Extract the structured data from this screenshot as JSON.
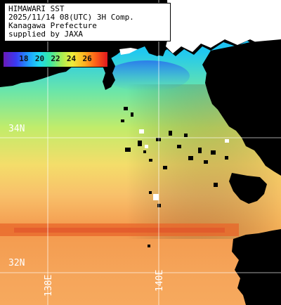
{
  "title_box": {
    "line1": "HIMAWARI SST",
    "line2": "2025/11/14 08(UTC) 3H Comp.",
    "line3": "Kanagawa Prefecture",
    "line4": "supplied by JAXA"
  },
  "colorbar": {
    "ticks": [
      "18",
      "20",
      "22",
      "24",
      "26"
    ],
    "min_value": 16.5,
    "max_value": 27.5,
    "unit": ""
  },
  "grid": {
    "latitudes": [
      "34N",
      "32N"
    ],
    "longitudes": [
      "138E",
      "140E"
    ]
  },
  "colors": {
    "land": "#000000",
    "cloud_mask": "#ffffff",
    "grid_line": "#ffffff",
    "water_cold": "#1e9cff",
    "water_mid": "#a8ec52",
    "water_warm": "#f0a25a",
    "water_warmest": "#e86a28"
  }
}
